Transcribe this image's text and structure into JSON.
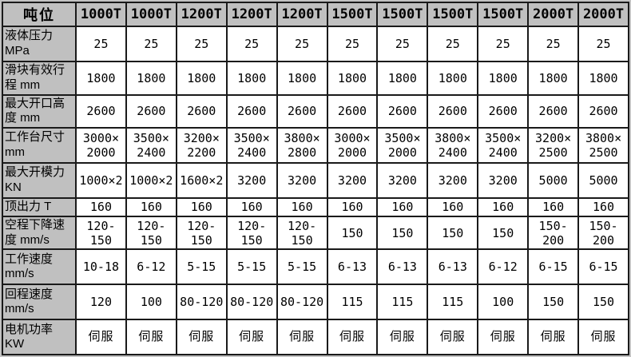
{
  "table": {
    "header": [
      "吨位",
      "1000T",
      "1000T",
      "1200T",
      "1200T",
      "1200T",
      "1500T",
      "1500T",
      "1500T",
      "1500T",
      "2000T",
      "2000T"
    ],
    "rows": [
      {
        "label": "液体压力",
        "unit": "MPa",
        "values": [
          "25",
          "25",
          "25",
          "25",
          "25",
          "25",
          "25",
          "25",
          "25",
          "25",
          "25"
        ]
      },
      {
        "label": "滑块有效行程",
        "unit": "mm",
        "values": [
          "1800",
          "1800",
          "1800",
          "1800",
          "1800",
          "1800",
          "1800",
          "1800",
          "1800",
          "1800",
          "1800"
        ]
      },
      {
        "label": "最大开口高度",
        "unit": "mm",
        "values": [
          "2600",
          "2600",
          "2600",
          "2600",
          "2600",
          "2600",
          "2600",
          "2600",
          "2600",
          "2600",
          "2600"
        ]
      },
      {
        "label": "工作台尺寸",
        "unit": "mm",
        "values": [
          "3000×2000",
          "3500×2400",
          "3200×2200",
          "3500×2400",
          "3800×2800",
          "3000×2000",
          "3500×2000",
          "3800×2400",
          "3500×2400",
          "3200×2500",
          "3800×2500"
        ]
      },
      {
        "label": "最大开模力",
        "unit": "KN",
        "values": [
          "1000×2",
          "1000×2",
          "1600×2",
          "3200",
          "3200",
          "3200",
          "3200",
          "3200",
          "3200",
          "5000",
          "5000"
        ]
      },
      {
        "label": "顶出力",
        "unit": "T",
        "values": [
          "160",
          "160",
          "160",
          "160",
          "160",
          "160",
          "160",
          "160",
          "160",
          "160",
          "160"
        ]
      },
      {
        "label": "空程下降速度",
        "unit": "mm/s",
        "values": [
          "120-150",
          "120-150",
          "120-150",
          "120-150",
          "120-150",
          "150",
          "150",
          "150",
          "150",
          "150-200",
          "150-200"
        ]
      },
      {
        "label": "工作速度",
        "unit": "mm/s",
        "values": [
          "10-18",
          "6-12",
          "5-15",
          "5-15",
          "5-15",
          "6-13",
          "6-13",
          "6-13",
          "6-12",
          "6-15",
          "6-15"
        ]
      },
      {
        "label": "回程速度",
        "unit": "mm/s",
        "values": [
          "120",
          "100",
          "80-120",
          "80-120",
          "80-120",
          "115",
          "115",
          "115",
          "100",
          "150",
          "150"
        ]
      },
      {
        "label": "电机功率",
        "unit": "KW",
        "values": [
          "伺服",
          "伺服",
          "伺服",
          "伺服",
          "伺服",
          "伺服",
          "伺服",
          "伺服",
          "伺服",
          "伺服",
          "伺服"
        ]
      }
    ]
  },
  "colors": {
    "header_bg": "#c0c0c0",
    "label_bg": "#c0c0c0",
    "cell_bg": "#ffffff",
    "border": "#1a1a1a",
    "page_bg": "#c2c2c2",
    "text": "#000000"
  }
}
